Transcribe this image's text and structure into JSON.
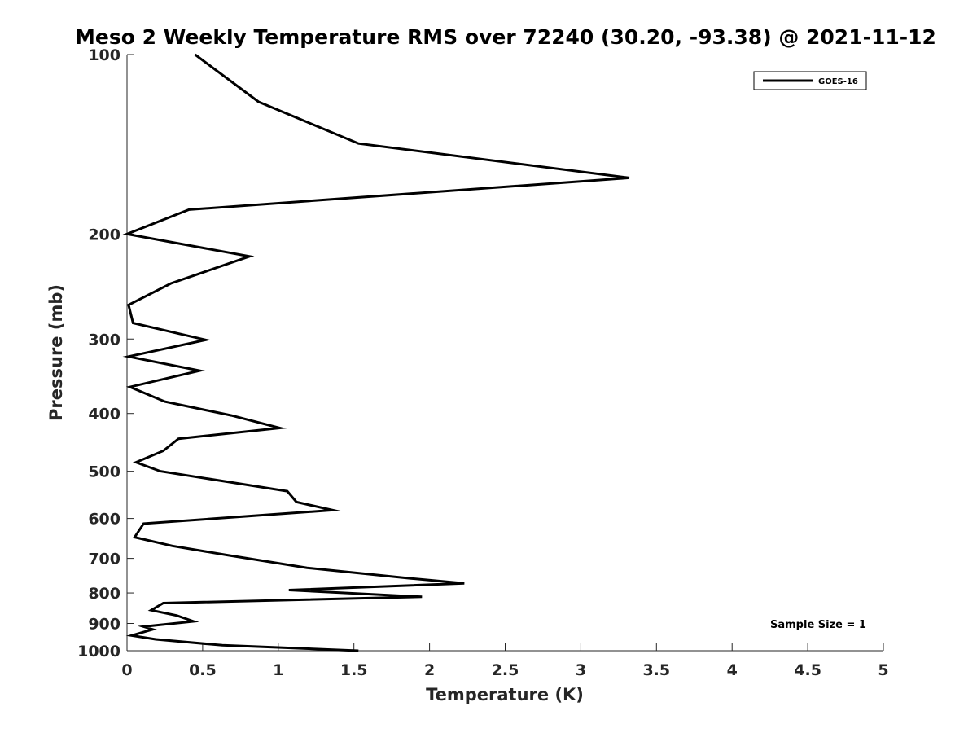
{
  "chart_data": {
    "type": "line",
    "title": "Meso 2 Weekly Temperature RMS over 72240 (30.20, -93.38) @ 2021-11-12",
    "xlabel": "Temperature (K)",
    "ylabel": "Pressure (mb)",
    "xlim": [
      0,
      5
    ],
    "ylim": [
      100,
      1000
    ],
    "yscale": "log",
    "y_reversed": true,
    "x_ticks": [
      "0",
      "0.5",
      "1",
      "1.5",
      "2",
      "2.5",
      "3",
      "3.5",
      "4",
      "4.5",
      "5"
    ],
    "y_ticks": [
      "100",
      "200",
      "300",
      "400",
      "500",
      "600",
      "700",
      "800",
      "900",
      "1000"
    ],
    "grid": false,
    "legend_position": "top-right",
    "annotation": "Sample Size = 1",
    "series": [
      {
        "name": "GOES-16",
        "color": "#000000",
        "x": [
          0.45,
          0.87,
          1.53,
          3.32,
          0.41,
          0.0,
          0.81,
          0.29,
          0.01,
          0.04,
          0.52,
          0.01,
          0.48,
          0.02,
          0.25,
          0.69,
          1.01,
          0.34,
          0.24,
          0.06,
          0.22,
          1.06,
          1.12,
          1.36,
          0.11,
          0.05,
          0.3,
          0.66,
          1.19,
          1.87,
          2.23,
          1.07,
          1.95,
          0.24,
          0.16,
          0.33,
          0.44,
          0.11,
          0.17,
          0.03,
          0.19,
          0.63,
          1.53
        ],
        "y": [
          100,
          120,
          141,
          161,
          182,
          200,
          218,
          242,
          263,
          282,
          301,
          321,
          339,
          361,
          382,
          403,
          423,
          441,
          462,
          483,
          500,
          540,
          563,
          581,
          612,
          645,
          667,
          691,
          726,
          756,
          771,
          791,
          812,
          832,
          855,
          873,
          893,
          911,
          921,
          943,
          957,
          979,
          1000
        ]
      }
    ]
  }
}
